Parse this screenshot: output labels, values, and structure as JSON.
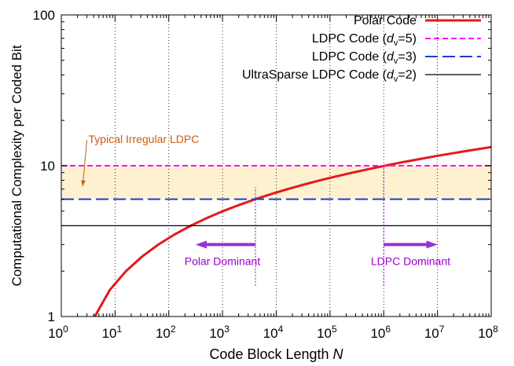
{
  "chart_data": {
    "type": "line",
    "xlabel": {
      "main": "Code Block Length ",
      "var": "N"
    },
    "ylabel": "Computational Complexity per Coded Bit",
    "x_scale": "log",
    "y_scale": "log",
    "xlim": [
      1,
      100000000
    ],
    "ylim": [
      1,
      100
    ],
    "x_ticks": [
      {
        "value": 1,
        "base": "10",
        "exp": "0"
      },
      {
        "value": 10,
        "base": "10",
        "exp": "1"
      },
      {
        "value": 100,
        "base": "10",
        "exp": "2"
      },
      {
        "value": 1000,
        "base": "10",
        "exp": "3"
      },
      {
        "value": 10000,
        "base": "10",
        "exp": "4"
      },
      {
        "value": 100000,
        "base": "10",
        "exp": "5"
      },
      {
        "value": 1000000,
        "base": "10",
        "exp": "6"
      },
      {
        "value": 10000000,
        "base": "10",
        "exp": "7"
      },
      {
        "value": 100000000,
        "base": "10",
        "exp": "8"
      }
    ],
    "y_ticks": [
      {
        "value": 1,
        "label": "1"
      },
      {
        "value": 10,
        "label": "10"
      },
      {
        "value": 100,
        "label": "100"
      }
    ],
    "grid": "vertical dotted at major x ticks",
    "legend_position": "top-right",
    "series": [
      {
        "name": "Polar Code",
        "color": "#e41a1c",
        "style": "solid-thick",
        "points": [
          [
            4.2,
            1.0
          ],
          [
            8,
            1.5
          ],
          [
            16,
            2.0
          ],
          [
            32,
            2.5
          ],
          [
            64,
            3.0
          ],
          [
            128,
            3.5
          ],
          [
            256,
            4.0
          ],
          [
            512,
            4.5
          ],
          [
            1024,
            5.0
          ],
          [
            2048,
            5.5
          ],
          [
            4096,
            6.0
          ],
          [
            8192,
            6.5
          ],
          [
            16384,
            7.0
          ],
          [
            32768,
            7.5
          ],
          [
            65536,
            8.0
          ],
          [
            131072,
            8.5
          ],
          [
            262144,
            9.0
          ],
          [
            524288,
            9.5
          ],
          [
            1048576,
            10.0
          ],
          [
            2097152,
            10.5
          ],
          [
            4194304,
            11.0
          ],
          [
            8388608,
            11.5
          ],
          [
            16777216,
            12.0
          ],
          [
            33554432,
            12.5
          ],
          [
            67108864,
            13.0
          ],
          [
            100000000,
            13.3
          ]
        ]
      },
      {
        "name": "LDPC Code (dv=5)",
        "legend": {
          "pre": "LDPC Code (",
          "var": "d",
          "sub": "v",
          "post": "=5)"
        },
        "color": "#ff00ff",
        "style": "short-dash",
        "value": 10
      },
      {
        "name": "LDPC Code (dv=3)",
        "legend": {
          "pre": "LDPC Code (",
          "var": "d",
          "sub": "v",
          "post": "=3)"
        },
        "color": "#1a3fcf",
        "style": "long-dash",
        "value": 6
      },
      {
        "name": "UltraSparse LDPC Code (dv=2)",
        "legend": {
          "pre": "UltraSparse LDPC Code (",
          "var": "d",
          "sub": "v",
          "post": "=2)"
        },
        "color": "#000000",
        "style": "thin-solid",
        "value": 4
      }
    ],
    "shaded_band": {
      "from": 6,
      "to": 10,
      "color": "#fdf1cf"
    },
    "annotations": {
      "band_label": {
        "text": "Typical Irregular LDPC",
        "color": "#cc5a10",
        "x": 3.2,
        "y": 15,
        "arrow_to": [
          2.5,
          7.3
        ]
      },
      "crossovers": [
        {
          "x": 4096,
          "y_from": 1.6,
          "y_to": 7.2,
          "color": "#9b00cc"
        },
        {
          "x": 1000000,
          "y_from": 1.6,
          "y_to": 10,
          "color": "#9b00cc"
        }
      ],
      "left_arrow": {
        "from": 4096,
        "to": 316,
        "y": 3.0,
        "color": "#9b30d0"
      },
      "right_arrow": {
        "from": 1000000,
        "to": 10000000,
        "y": 3.0,
        "color": "#9b30d0"
      },
      "polar_dominant": {
        "text": "Polar Dominant",
        "color": "#9b00cc",
        "x": 4096,
        "y": 2.3
      },
      "ldpc_dominant": {
        "text": "LDPC Dominant",
        "color": "#9b00cc",
        "x": 3162278,
        "y": 2.3
      }
    }
  }
}
